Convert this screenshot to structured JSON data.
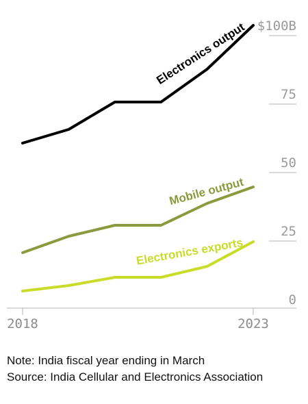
{
  "chart_data": {
    "type": "line",
    "x": [
      "2018",
      "2019",
      "2020",
      "2021",
      "2022",
      "2023"
    ],
    "x_tick_labels": [
      "2018",
      "2023"
    ],
    "y_ticks": [
      0,
      25,
      50,
      75,
      100
    ],
    "y_tick_labels": [
      "0",
      "25",
      "50",
      "75",
      "$100B"
    ],
    "ylim": [
      0,
      100
    ],
    "grid": "partial ticks at right",
    "series": [
      {
        "name": "Electronics output",
        "values": [
          57,
          62,
          72,
          72,
          84,
          100
        ],
        "color": "#000000"
      },
      {
        "name": "Mobile output",
        "values": [
          17,
          23,
          27,
          27,
          35,
          41
        ],
        "color": "#8a9a3c"
      },
      {
        "name": "Electronics exports",
        "values": [
          3,
          5,
          8,
          8,
          12,
          21
        ],
        "color": "#c8dc28"
      }
    ]
  },
  "notes": {
    "note": "Note: India fiscal year ending in March",
    "source": "Source: India Cellular and Electronics Association"
  }
}
